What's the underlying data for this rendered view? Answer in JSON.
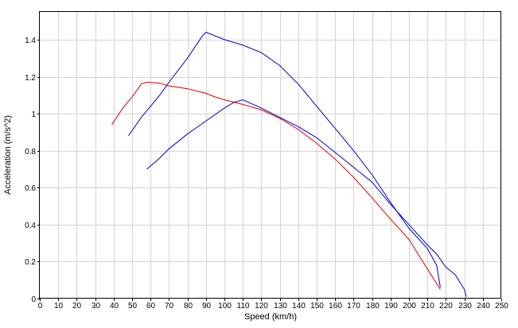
{
  "chart_data": {
    "type": "line",
    "title": "",
    "xlabel": "Speed (km/h)",
    "ylabel": "Acceleration (m/s^2)",
    "xlim": [
      0,
      250
    ],
    "ylim": [
      0,
      1.55
    ],
    "x_ticks": [
      0,
      10,
      20,
      30,
      40,
      50,
      60,
      70,
      80,
      90,
      100,
      110,
      120,
      130,
      140,
      150,
      160,
      170,
      180,
      190,
      200,
      210,
      220,
      230,
      240,
      250
    ],
    "y_ticks": [
      0,
      0.2,
      0.4,
      0.6,
      0.8,
      1,
      1.2,
      1.4
    ],
    "y_tick_labels": [
      "0",
      "0.2",
      "0.4",
      "0.6",
      "0.8",
      "1",
      "1.2",
      "1.4"
    ],
    "grid": true,
    "series": [
      {
        "color": "#e00000",
        "points": [
          [
            39,
            0.94
          ],
          [
            45,
            1.03
          ],
          [
            50,
            1.09
          ],
          [
            55,
            1.16
          ],
          [
            58,
            1.17
          ],
          [
            65,
            1.165
          ],
          [
            70,
            1.15
          ],
          [
            80,
            1.135
          ],
          [
            90,
            1.11
          ],
          [
            95,
            1.09
          ],
          [
            100,
            1.075
          ],
          [
            110,
            1.05
          ],
          [
            120,
            1.02
          ],
          [
            130,
            0.975
          ],
          [
            140,
            0.915
          ],
          [
            150,
            0.84
          ],
          [
            160,
            0.755
          ],
          [
            170,
            0.655
          ],
          [
            180,
            0.545
          ],
          [
            190,
            0.43
          ],
          [
            200,
            0.32
          ],
          [
            210,
            0.16
          ],
          [
            217,
            0.05
          ]
        ]
      },
      {
        "color": "#0000cc",
        "points": [
          [
            48,
            0.88
          ],
          [
            55,
            0.98
          ],
          [
            60,
            1.04
          ],
          [
            65,
            1.1
          ],
          [
            70,
            1.17
          ],
          [
            80,
            1.3
          ],
          [
            88,
            1.42
          ],
          [
            90,
            1.44
          ],
          [
            100,
            1.4
          ],
          [
            110,
            1.37
          ],
          [
            120,
            1.33
          ],
          [
            130,
            1.26
          ],
          [
            140,
            1.16
          ],
          [
            150,
            1.04
          ],
          [
            160,
            0.92
          ],
          [
            170,
            0.8
          ],
          [
            180,
            0.67
          ],
          [
            190,
            0.52
          ],
          [
            195,
            0.45
          ],
          [
            200,
            0.38
          ],
          [
            210,
            0.27
          ],
          [
            215,
            0.18
          ],
          [
            217,
            0.06
          ]
        ]
      },
      {
        "color": "#0000cc",
        "points": [
          [
            58,
            0.7
          ],
          [
            65,
            0.76
          ],
          [
            70,
            0.81
          ],
          [
            80,
            0.89
          ],
          [
            90,
            0.96
          ],
          [
            100,
            1.03
          ],
          [
            105,
            1.06
          ],
          [
            110,
            1.075
          ],
          [
            120,
            1.03
          ],
          [
            130,
            0.98
          ],
          [
            140,
            0.93
          ],
          [
            150,
            0.87
          ],
          [
            160,
            0.79
          ],
          [
            170,
            0.71
          ],
          [
            180,
            0.63
          ],
          [
            190,
            0.51
          ],
          [
            200,
            0.4
          ],
          [
            210,
            0.29
          ],
          [
            215,
            0.24
          ],
          [
            220,
            0.17
          ],
          [
            225,
            0.13
          ],
          [
            230,
            0.05
          ],
          [
            231,
            0.01
          ]
        ]
      }
    ]
  }
}
